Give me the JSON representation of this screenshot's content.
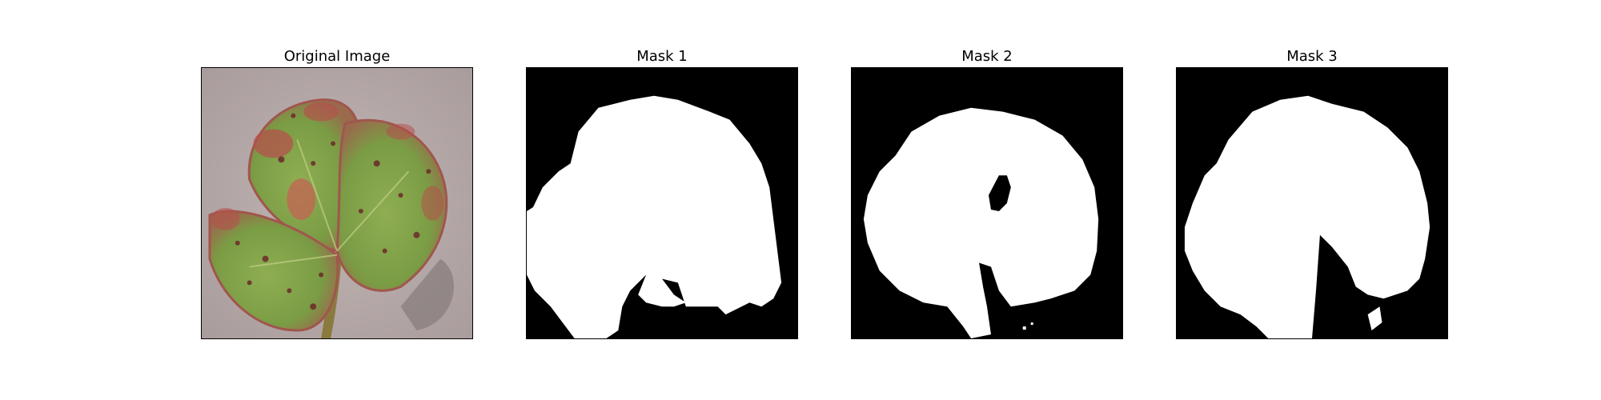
{
  "figure": {
    "panels": [
      {
        "title": "Original Image",
        "kind": "photo"
      },
      {
        "title": "Mask 1",
        "kind": "mask"
      },
      {
        "title": "Mask 2",
        "kind": "mask"
      },
      {
        "title": "Mask 3",
        "kind": "mask"
      }
    ]
  },
  "colors": {
    "mask_foreground": "#ffffff",
    "mask_background": "#000000",
    "photo_background": "#b7aaa9",
    "leaf_green": "#7fa145",
    "leaf_red": "#b4514c",
    "spot_dark": "#6b2a2a"
  }
}
